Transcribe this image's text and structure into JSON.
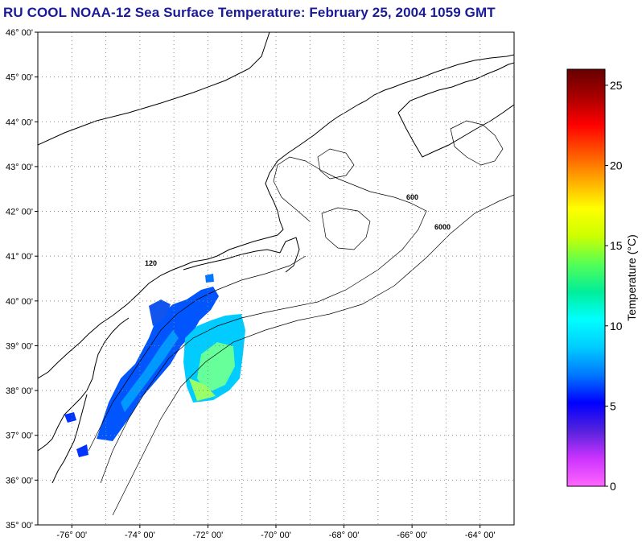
{
  "title": "RU COOL  NOAA-12  Sea Surface Temperature:  February 25, 2004 1059 GMT",
  "map": {
    "lon_min": -77,
    "lon_max": -63,
    "lat_min": 35,
    "lat_max": 46,
    "lat_labels": [
      "35° 00'",
      "36° 00'",
      "37° 00'",
      "38° 00'",
      "39° 00'",
      "40° 00'",
      "41° 00'",
      "42° 00'",
      "43° 00'",
      "44° 00'",
      "45° 00'",
      "46° 00'"
    ],
    "lon_labels": [
      "-76° 00'",
      "-74° 00'",
      "-72° 00'",
      "-70° 00'",
      "-68° 00'",
      "-66° 00'",
      "-64° 00'"
    ],
    "contour_labels": [
      "120",
      "600",
      "6000"
    ],
    "grid": "dotted"
  },
  "colorbar": {
    "label": "Temperature (°C)",
    "min": 0,
    "max": 26,
    "ticks": [
      "0",
      "5",
      "10",
      "15",
      "20",
      "25"
    ],
    "tick_values": [
      0,
      5,
      10,
      15,
      20,
      25
    ],
    "colors": [
      "#ff66ff",
      "#cc33ff",
      "#5522dd",
      "#0000ff",
      "#0077ff",
      "#00ccff",
      "#00ffff",
      "#00ee99",
      "#55ff55",
      "#ccff00",
      "#ffff00",
      "#ffaa00",
      "#ff5500",
      "#ff0000",
      "#aa0000",
      "#660000"
    ]
  },
  "colors": {
    "title": "#1b1b9a",
    "coast": "#000000",
    "sst_cold": "#0044ff",
    "sst_mid": "#00bbff",
    "sst_warm": "#66ff99"
  }
}
